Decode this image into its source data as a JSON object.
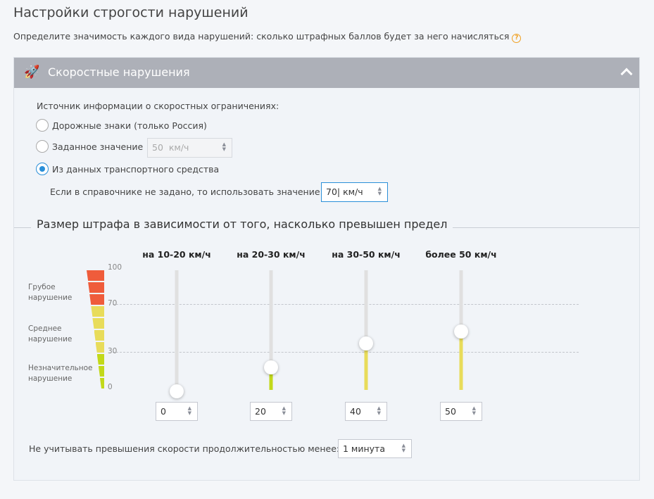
{
  "title": "Настройки строгости нарушений",
  "subtitle": "Определите значимость каждого вида нарушений: сколько штрафных баллов будет за него начисляться",
  "panel": {
    "title": "Скоростные нарушения",
    "icon": "rocket-icon",
    "collapse_icon": "chevron-up-icon"
  },
  "source": {
    "label": "Источник информации о скоростных ограничениях:",
    "options": [
      {
        "label": "Дорожные знаки (только Россия)",
        "selected": false
      },
      {
        "label": "Заданное значение",
        "selected": false,
        "value": "50",
        "unit": "км/ч"
      },
      {
        "label": "Из данных транспортного средства",
        "selected": true
      }
    ],
    "fallback_label": "Если в справочнике не задано, то использовать значение:",
    "fallback_value": "70",
    "fallback_unit": "км/ч"
  },
  "fine": {
    "legend": "Размер штрафа в зависимости от того, насколько превышен предел",
    "levels": [
      "Грубое нарушение",
      "Среднее нарушение",
      "Незначительное нарушение"
    ],
    "ticks": [
      "100",
      "70",
      "30",
      "0"
    ],
    "columns": [
      {
        "label": "на 10-20 км/ч",
        "value": 0
      },
      {
        "label": "на 20-30 км/ч",
        "value": 20
      },
      {
        "label": "на 30-50 км/ч",
        "value": 40
      },
      {
        "label": "более 50 км/ч",
        "value": 50
      }
    ],
    "colors": {
      "high": "#ef5c3b",
      "medium": "#e8dc5a",
      "low": "#c2d91a"
    },
    "duration_label": "Не учитывать превышения скорости продолжительностью менее:",
    "duration_value": "1 минута"
  }
}
